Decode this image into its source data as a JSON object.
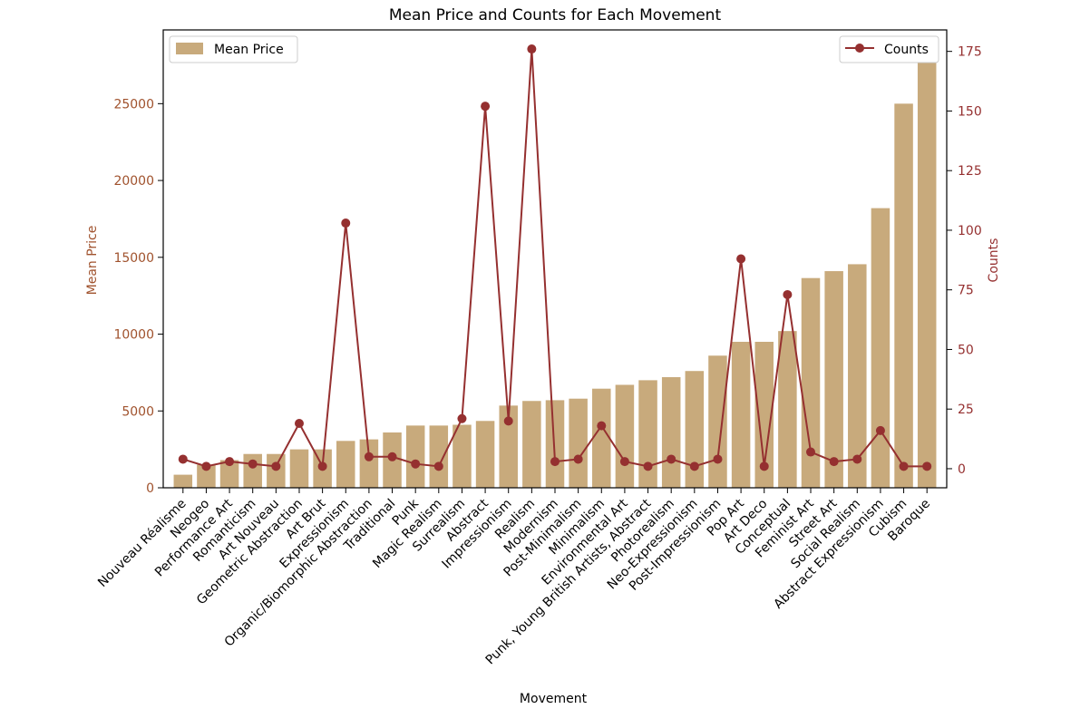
{
  "chart_data": {
    "type": "bar",
    "title": "Mean Price and Counts for Each Movement",
    "xlabel": "Movement",
    "ylabel": "Mean Price",
    "y2label": "Counts",
    "ylim": [
      0,
      29800
    ],
    "y2lim": [
      -8,
      184
    ],
    "yticks": [
      0,
      5000,
      10000,
      15000,
      20000,
      25000
    ],
    "y2ticks": [
      0,
      25,
      50,
      75,
      100,
      125,
      150,
      175
    ],
    "legend_left_position": "top-left",
    "legend_right_position": "top-right",
    "grid": false,
    "categories": [
      "Nouveau Réalisme",
      "Neogeo",
      "Performance Art",
      "Romanticism",
      "Art Nouveau",
      "Geometric Abstraction",
      "Art Brut",
      "Expressionism",
      "Organic/Biomorphic Abstraction",
      "Traditional",
      "Punk",
      "Magic Realism",
      "Surrealism",
      "Abstract",
      "Impressionism",
      "Realism",
      "Modernism",
      "Post-Minimalism",
      "Minimalism",
      "Environmental Art",
      "Punk, Young British Artists, Abstract",
      "Photorealism",
      "Neo-Expressionism",
      "Post-Impressionism",
      "Pop Art",
      "Art Deco",
      "Conceptual",
      "Feminist Art",
      "Street Art",
      "Social Realism",
      "Abstract Expressionism",
      "Cubism",
      "Baroque"
    ],
    "series": [
      {
        "name": "Mean Price",
        "kind": "bar",
        "axis": "left",
        "color": "#c8aa7c",
        "values": [
          850,
          1500,
          1800,
          2200,
          2200,
          2500,
          2500,
          3050,
          3150,
          3600,
          4050,
          4050,
          4100,
          4350,
          5350,
          5650,
          5700,
          5800,
          6450,
          6700,
          7000,
          7200,
          7600,
          8600,
          9500,
          9500,
          10200,
          13650,
          14100,
          14550,
          18200,
          25000,
          28800
        ]
      },
      {
        "name": "Counts",
        "kind": "line",
        "axis": "right",
        "color": "#953030",
        "values": [
          4,
          1,
          3,
          2,
          1,
          19,
          1,
          103,
          5,
          5,
          2,
          1,
          21,
          152,
          20,
          176,
          3,
          4,
          18,
          3,
          1,
          4,
          1,
          4,
          88,
          1,
          73,
          7,
          3,
          4,
          16,
          1,
          1
        ]
      }
    ],
    "colors": {
      "left_axis": "#a0522d",
      "right_axis": "#953030",
      "axes": "#000000"
    }
  }
}
